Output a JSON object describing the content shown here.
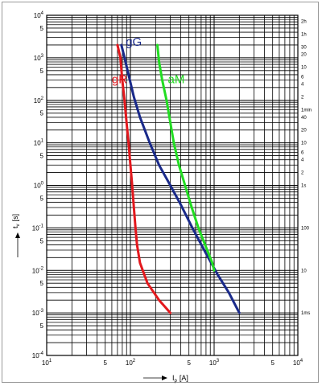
{
  "chart_data": {
    "type": "line",
    "x_scale": "log",
    "y_scale": "log",
    "xlim": [
      10,
      10000
    ],
    "ylim": [
      0.0001,
      10000
    ],
    "grid": true,
    "xlabel": "I",
    "xlabel_sub": "p",
    "xlabel_unit": "[A]",
    "ylabel": "t",
    "ylabel_sub": "v",
    "ylabel_unit": "[s]",
    "x_ticks": [
      {
        "value": 10,
        "base": "10",
        "exp": "1"
      },
      {
        "value": 50,
        "label": "5"
      },
      {
        "value": 100,
        "base": "10",
        "exp": "2"
      },
      {
        "value": 500,
        "label": "5"
      },
      {
        "value": 1000,
        "base": "10",
        "exp": "3"
      },
      {
        "value": 5000,
        "label": "5"
      },
      {
        "value": 10000,
        "base": "10",
        "exp": "4"
      }
    ],
    "y_ticks": [
      {
        "value": 10000,
        "base": "10",
        "exp": "4"
      },
      {
        "value": 5000,
        "label": "5"
      },
      {
        "value": 1000,
        "base": "10",
        "exp": "3"
      },
      {
        "value": 500,
        "label": "5"
      },
      {
        "value": 100,
        "base": "10",
        "exp": "2"
      },
      {
        "value": 50,
        "label": "5"
      },
      {
        "value": 10,
        "base": "10",
        "exp": "1"
      },
      {
        "value": 5,
        "label": "5"
      },
      {
        "value": 1,
        "base": "10",
        "exp": "0"
      },
      {
        "value": 0.5,
        "label": "5"
      },
      {
        "value": 0.1,
        "base": "10",
        "exp": "-1"
      },
      {
        "value": 0.05,
        "label": "5"
      },
      {
        "value": 0.01,
        "base": "10",
        "exp": "-2"
      },
      {
        "value": 0.005,
        "label": "5"
      },
      {
        "value": 0.001,
        "base": "10",
        "exp": "-3"
      },
      {
        "value": 0.0005,
        "label": "5"
      },
      {
        "value": 0.0001,
        "base": "10",
        "exp": "-4"
      }
    ],
    "right_axis_labels": [
      {
        "value": 7200,
        "label": "2h"
      },
      {
        "value": 3600,
        "label": "1h"
      },
      {
        "value": 1800,
        "label": "30"
      },
      {
        "value": 1200,
        "label": "20"
      },
      {
        "value": 600,
        "label": "10"
      },
      {
        "value": 360,
        "label": "6"
      },
      {
        "value": 240,
        "label": "4"
      },
      {
        "value": 120,
        "label": "2"
      },
      {
        "value": 60,
        "label": "1min"
      },
      {
        "value": 40,
        "label": "40"
      },
      {
        "value": 20,
        "label": "20"
      },
      {
        "value": 10,
        "label": "10"
      },
      {
        "value": 6,
        "label": "6"
      },
      {
        "value": 4,
        "label": "4"
      },
      {
        "value": 2,
        "label": "2"
      },
      {
        "value": 1,
        "label": "1s"
      },
      {
        "value": 0.1,
        "label": "100"
      },
      {
        "value": 0.01,
        "label": "10"
      },
      {
        "value": 0.001,
        "label": "1ms"
      }
    ],
    "series": [
      {
        "name": "gR",
        "color": "#e3181d",
        "label_at": [
          60,
          250
        ],
        "points": [
          [
            70,
            2000
          ],
          [
            76,
            1000
          ],
          [
            80,
            300
          ],
          [
            85,
            100
          ],
          [
            90,
            30
          ],
          [
            95,
            10
          ],
          [
            100,
            3
          ],
          [
            105,
            1
          ],
          [
            110,
            0.3
          ],
          [
            115,
            0.1
          ],
          [
            120,
            0.04
          ],
          [
            130,
            0.015
          ],
          [
            160,
            0.005
          ],
          [
            220,
            0.002
          ],
          [
            300,
            0.001
          ]
        ]
      },
      {
        "name": "gG",
        "color": "#1a2a8a",
        "label_at": [
          88,
          1900
        ],
        "points": [
          [
            78,
            2000
          ],
          [
            85,
            1000
          ],
          [
            95,
            400
          ],
          [
            110,
            120
          ],
          [
            130,
            40
          ],
          [
            170,
            10
          ],
          [
            220,
            3
          ],
          [
            300,
            1
          ],
          [
            400,
            0.35
          ],
          [
            550,
            0.1
          ],
          [
            800,
            0.025
          ],
          [
            1100,
            0.008
          ],
          [
            1500,
            0.003
          ],
          [
            2000,
            0.001
          ]
        ]
      },
      {
        "name": "aM",
        "color": "#22dd22",
        "label_at": [
          280,
          250
        ],
        "points": [
          [
            210,
            2000
          ],
          [
            220,
            800
          ],
          [
            240,
            300
          ],
          [
            270,
            100
          ],
          [
            300,
            30
          ],
          [
            330,
            10
          ],
          [
            380,
            3
          ],
          [
            450,
            1
          ],
          [
            540,
            0.3
          ],
          [
            650,
            0.1
          ],
          [
            780,
            0.04
          ],
          [
            950,
            0.015
          ],
          [
            1000,
            0.01
          ]
        ]
      }
    ]
  }
}
